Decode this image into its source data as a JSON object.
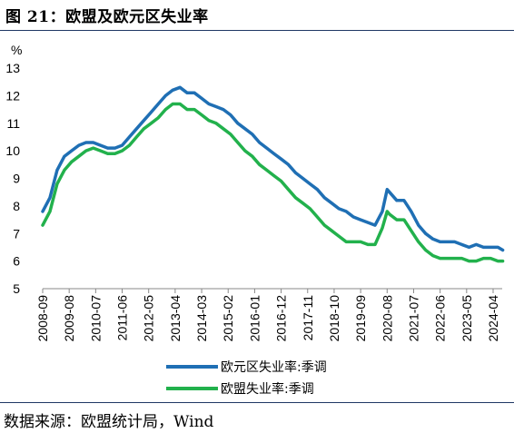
{
  "header": {
    "title": "图 21：欧盟及欧元区失业率"
  },
  "footer": {
    "source": "数据来源：欧盟统计局，Wind"
  },
  "chart_data": {
    "type": "line",
    "ylabel": "%",
    "ylim": [
      5,
      13
    ],
    "yticks": [
      5,
      6,
      7,
      8,
      9,
      10,
      11,
      12,
      13
    ],
    "grid": false,
    "legend_position": "bottom",
    "x_ticks": [
      "2008-09",
      "2009-08",
      "2010-07",
      "2011-06",
      "2012-05",
      "2013-04",
      "2014-03",
      "2015-02",
      "2016-01",
      "2016-12",
      "2017-11",
      "2018-10",
      "2019-09",
      "2020-08",
      "2021-07",
      "2022-06",
      "2023-05",
      "2024-04"
    ],
    "series": [
      {
        "name": "欧元区失业率:季调",
        "color": "#1f6fb4",
        "x": [
          "2008-09",
          "2008-12",
          "2009-03",
          "2009-06",
          "2009-09",
          "2009-12",
          "2010-03",
          "2010-06",
          "2010-09",
          "2010-12",
          "2011-03",
          "2011-06",
          "2011-09",
          "2011-12",
          "2012-03",
          "2012-06",
          "2012-09",
          "2012-12",
          "2013-03",
          "2013-06",
          "2013-09",
          "2013-12",
          "2014-03",
          "2014-06",
          "2014-09",
          "2014-12",
          "2015-03",
          "2015-06",
          "2015-09",
          "2015-12",
          "2016-03",
          "2016-06",
          "2016-09",
          "2016-12",
          "2017-03",
          "2017-06",
          "2017-09",
          "2017-12",
          "2018-03",
          "2018-06",
          "2018-09",
          "2018-12",
          "2019-03",
          "2019-06",
          "2019-09",
          "2019-12",
          "2020-03",
          "2020-06",
          "2020-08",
          "2020-09",
          "2020-12",
          "2021-03",
          "2021-06",
          "2021-09",
          "2021-12",
          "2022-03",
          "2022-06",
          "2022-09",
          "2022-12",
          "2023-03",
          "2023-06",
          "2023-09",
          "2023-12",
          "2024-03",
          "2024-06",
          "2024-08"
        ],
        "values": [
          7.8,
          8.3,
          9.3,
          9.8,
          10.0,
          10.2,
          10.3,
          10.3,
          10.2,
          10.1,
          10.1,
          10.2,
          10.5,
          10.8,
          11.1,
          11.4,
          11.7,
          12.0,
          12.2,
          12.3,
          12.1,
          12.1,
          11.9,
          11.7,
          11.6,
          11.5,
          11.3,
          11.0,
          10.8,
          10.6,
          10.3,
          10.1,
          9.9,
          9.7,
          9.5,
          9.2,
          9.0,
          8.8,
          8.6,
          8.3,
          8.1,
          7.9,
          7.8,
          7.6,
          7.5,
          7.4,
          7.3,
          7.8,
          8.6,
          8.5,
          8.2,
          8.2,
          7.8,
          7.3,
          7.0,
          6.8,
          6.7,
          6.7,
          6.7,
          6.6,
          6.5,
          6.6,
          6.5,
          6.5,
          6.5,
          6.4
        ]
      },
      {
        "name": "欧盟失业率:季调",
        "color": "#22b14c",
        "x": [
          "2008-09",
          "2008-12",
          "2009-03",
          "2009-06",
          "2009-09",
          "2009-12",
          "2010-03",
          "2010-06",
          "2010-09",
          "2010-12",
          "2011-03",
          "2011-06",
          "2011-09",
          "2011-12",
          "2012-03",
          "2012-06",
          "2012-09",
          "2012-12",
          "2013-03",
          "2013-06",
          "2013-09",
          "2013-12",
          "2014-03",
          "2014-06",
          "2014-09",
          "2014-12",
          "2015-03",
          "2015-06",
          "2015-09",
          "2015-12",
          "2016-03",
          "2016-06",
          "2016-09",
          "2016-12",
          "2017-03",
          "2017-06",
          "2017-09",
          "2017-12",
          "2018-03",
          "2018-06",
          "2018-09",
          "2018-12",
          "2019-03",
          "2019-06",
          "2019-09",
          "2019-12",
          "2020-03",
          "2020-06",
          "2020-08",
          "2020-09",
          "2020-12",
          "2021-03",
          "2021-06",
          "2021-09",
          "2021-12",
          "2022-03",
          "2022-06",
          "2022-09",
          "2022-12",
          "2023-03",
          "2023-06",
          "2023-09",
          "2023-12",
          "2024-03",
          "2024-06",
          "2024-08"
        ],
        "values": [
          7.3,
          7.8,
          8.8,
          9.3,
          9.6,
          9.8,
          10.0,
          10.1,
          10.0,
          9.9,
          9.9,
          10.0,
          10.2,
          10.5,
          10.8,
          11.0,
          11.2,
          11.5,
          11.7,
          11.7,
          11.5,
          11.5,
          11.3,
          11.1,
          11.0,
          10.8,
          10.6,
          10.3,
          10.0,
          9.8,
          9.5,
          9.3,
          9.1,
          8.9,
          8.6,
          8.3,
          8.1,
          7.9,
          7.6,
          7.3,
          7.1,
          6.9,
          6.7,
          6.7,
          6.7,
          6.6,
          6.6,
          7.2,
          7.8,
          7.7,
          7.5,
          7.5,
          7.1,
          6.7,
          6.4,
          6.2,
          6.1,
          6.1,
          6.1,
          6.1,
          6.0,
          6.0,
          6.1,
          6.1,
          6.0,
          6.0
        ]
      }
    ]
  }
}
